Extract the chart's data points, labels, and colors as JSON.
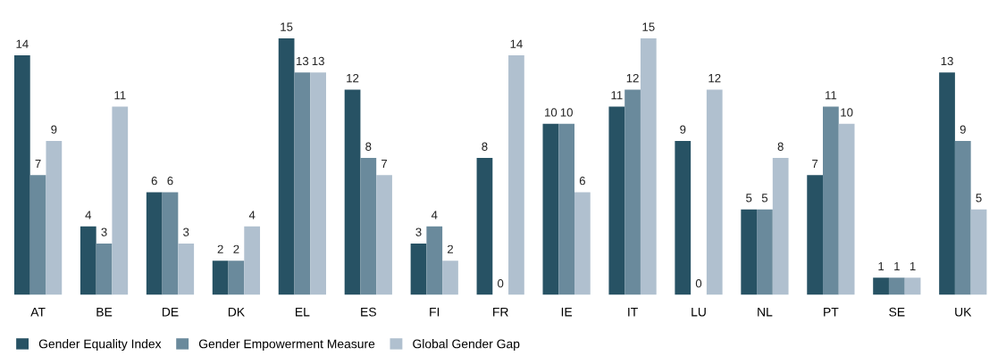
{
  "chart_data": {
    "type": "bar",
    "categories": [
      "AT",
      "BE",
      "DE",
      "DK",
      "EL",
      "ES",
      "FI",
      "FR",
      "IE",
      "IT",
      "LU",
      "NL",
      "PT",
      "SE",
      "UK"
    ],
    "series": [
      {
        "name": "Gender Equality Index",
        "color": "#275264",
        "values": [
          14,
          4,
          6,
          2,
          15,
          12,
          3,
          8,
          10,
          11,
          9,
          5,
          7,
          1,
          13
        ]
      },
      {
        "name": "Gender Empowerment Measure",
        "color": "#6a8a9c",
        "values": [
          7,
          3,
          6,
          2,
          13,
          8,
          4,
          0,
          10,
          12,
          0,
          5,
          11,
          1,
          9
        ]
      },
      {
        "name": "Global Gender Gap",
        "color": "#b0c0cf",
        "values": [
          9,
          11,
          3,
          4,
          13,
          7,
          2,
          14,
          6,
          15,
          12,
          8,
          10,
          1,
          5
        ]
      }
    ],
    "data_labels": true,
    "grid": false,
    "legend": "bottom left",
    "tick_labels": "x"
  }
}
